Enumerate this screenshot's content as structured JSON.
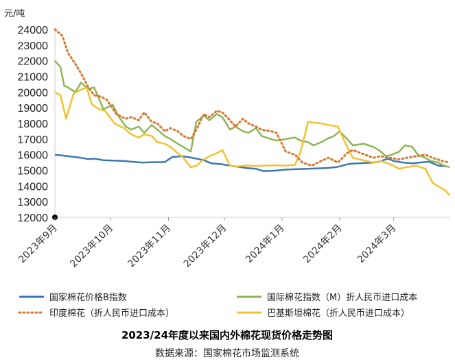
{
  "chart_data": {
    "type": "line",
    "title": "2023/24年度以来国内外棉花现货价格走势图",
    "source": "数据来源：国家棉花市场监测系统",
    "ylabel": "元/吨",
    "ylim": [
      12000,
      24000
    ],
    "yticks": [
      "12000",
      "13000",
      "14000",
      "15000",
      "16000",
      "17000",
      "18000",
      "19000",
      "20000",
      "21000",
      "22000",
      "23000",
      "24000"
    ],
    "x_range": [
      "2023-09-01",
      "2024-03-31"
    ],
    "x_ticks": [
      {
        "date": "2023-09-01",
        "label": "2023年9月"
      },
      {
        "date": "2023-10-01",
        "label": "2023年10月"
      },
      {
        "date": "2023-11-01",
        "label": "2023年11月"
      },
      {
        "date": "2023-12-01",
        "label": "2023年12月"
      },
      {
        "date": "2024-01-01",
        "label": "2024年1月"
      },
      {
        "date": "2024-02-01",
        "label": "2024年2月"
      },
      {
        "date": "2024-03-01",
        "label": "2024年3月"
      }
    ],
    "grid": false,
    "legend_position": "bottom",
    "series": [
      {
        "name": "国家棉花价格B指数",
        "color": "#3a78b5",
        "dash": "solid",
        "x": [
          "2023-09-01",
          "2023-09-05",
          "2023-09-08",
          "2023-09-12",
          "2023-09-15",
          "2023-09-19",
          "2023-09-22",
          "2023-09-27",
          "2023-10-08",
          "2023-10-12",
          "2023-10-18",
          "2023-10-24",
          "2023-10-30",
          "2023-11-03",
          "2023-11-08",
          "2023-11-13",
          "2023-11-16",
          "2023-11-20",
          "2023-11-24",
          "2023-11-29",
          "2023-12-04",
          "2023-12-08",
          "2023-12-13",
          "2023-12-18",
          "2023-12-22",
          "2023-12-28",
          "2024-01-03",
          "2024-01-09",
          "2024-01-15",
          "2024-01-19",
          "2024-01-25",
          "2024-01-30",
          "2024-02-05",
          "2024-02-07",
          "2024-02-19",
          "2024-02-22",
          "2024-02-27",
          "2024-03-01",
          "2024-03-06",
          "2024-03-11",
          "2024-03-15",
          "2024-03-20",
          "2024-03-25",
          "2024-03-29"
        ],
        "values": [
          16000,
          15950,
          15900,
          15850,
          15800,
          15720,
          15750,
          15650,
          15600,
          15550,
          15500,
          15520,
          15530,
          15850,
          15900,
          15820,
          15750,
          15650,
          15450,
          15400,
          15300,
          15230,
          15150,
          15100,
          14950,
          14980,
          15050,
          15080,
          15100,
          15120,
          15150,
          15200,
          15380,
          15420,
          15500,
          15550,
          15750,
          15600,
          15500,
          15450,
          15500,
          15550,
          15300,
          15250
        ]
      },
      {
        "name": "国际棉花指数（M）折人民币进口成本",
        "color": "#8db554",
        "dash": "solid",
        "x": [
          "2023-09-01",
          "2023-09-04",
          "2023-09-06",
          "2023-09-08",
          "2023-09-12",
          "2023-09-15",
          "2023-09-19",
          "2023-09-22",
          "2023-09-25",
          "2023-09-27",
          "2023-10-02",
          "2023-10-05",
          "2023-10-09",
          "2023-10-12",
          "2023-10-16",
          "2023-10-19",
          "2023-10-23",
          "2023-10-26",
          "2023-10-30",
          "2023-11-02",
          "2023-11-06",
          "2023-11-09",
          "2023-11-13",
          "2023-11-16",
          "2023-11-20",
          "2023-11-23",
          "2023-11-27",
          "2023-11-30",
          "2023-12-04",
          "2023-12-07",
          "2023-12-11",
          "2023-12-14",
          "2023-12-18",
          "2023-12-21",
          "2023-12-26",
          "2023-12-29",
          "2024-01-03",
          "2024-01-08",
          "2024-01-11",
          "2024-01-15",
          "2024-01-18",
          "2024-01-22",
          "2024-01-25",
          "2024-01-29",
          "2024-02-01",
          "2024-02-05",
          "2024-02-08",
          "2024-02-14",
          "2024-02-19",
          "2024-02-22",
          "2024-02-26",
          "2024-02-29",
          "2024-03-04",
          "2024-03-07",
          "2024-03-11",
          "2024-03-14",
          "2024-03-18",
          "2024-03-21",
          "2024-03-25",
          "2024-03-28",
          "2024-03-31"
        ],
        "values": [
          22000,
          21600,
          20400,
          20300,
          20000,
          20600,
          20200,
          20300,
          19500,
          18900,
          19200,
          18500,
          17800,
          17600,
          17800,
          17400,
          17900,
          17600,
          17200,
          17000,
          16700,
          16500,
          16200,
          18100,
          18500,
          18200,
          18600,
          18400,
          17600,
          17800,
          17500,
          17400,
          17700,
          17200,
          17000,
          16900,
          17000,
          17100,
          16900,
          16800,
          16600,
          16800,
          17000,
          17200,
          17500,
          17000,
          16600,
          16700,
          16500,
          16300,
          15900,
          16000,
          16200,
          16600,
          16500,
          16000,
          15800,
          15600,
          15500,
          15300,
          15200
        ]
      },
      {
        "name": "印度棉花（折人民币进口成本）",
        "color": "#d9782d",
        "dash": "dotted",
        "x": [
          "2023-09-01",
          "2023-09-05",
          "2023-09-08",
          "2023-09-12",
          "2023-09-15",
          "2023-09-19",
          "2023-09-22",
          "2023-09-26",
          "2023-09-29",
          "2023-10-04",
          "2023-10-09",
          "2023-10-12",
          "2023-10-16",
          "2023-10-19",
          "2023-10-23",
          "2023-10-26",
          "2023-10-30",
          "2023-11-02",
          "2023-11-06",
          "2023-11-09",
          "2023-11-13",
          "2023-11-16",
          "2023-11-20",
          "2023-11-23",
          "2023-11-27",
          "2023-11-30",
          "2023-12-04",
          "2023-12-07",
          "2023-12-11",
          "2023-12-14",
          "2023-12-18",
          "2023-12-21",
          "2023-12-26",
          "2023-12-29",
          "2024-01-03",
          "2024-01-08",
          "2024-01-12",
          "2024-01-17",
          "2024-01-22",
          "2024-01-26",
          "2024-01-31",
          "2024-02-05",
          "2024-02-08",
          "2024-02-19",
          "2024-02-23",
          "2024-02-28",
          "2024-03-04",
          "2024-03-08",
          "2024-03-13",
          "2024-03-18",
          "2024-03-22",
          "2024-03-27",
          "2024-03-31"
        ],
        "values": [
          24000,
          23600,
          22500,
          21800,
          21200,
          20300,
          19800,
          19700,
          19500,
          18600,
          18300,
          18400,
          18200,
          18700,
          18100,
          18000,
          17500,
          17700,
          17500,
          17200,
          17000,
          17600,
          18600,
          18400,
          18800,
          18700,
          18200,
          17800,
          18300,
          18000,
          17800,
          17600,
          17500,
          17400,
          16200,
          16000,
          15500,
          15300,
          15600,
          15800,
          15500,
          16100,
          16300,
          15800,
          15900,
          15800,
          15700,
          15800,
          15900,
          16000,
          15800,
          15600,
          15500
        ]
      },
      {
        "name": "巴基斯坦棉花（折人民币进口成本）",
        "color": "#f2c12e",
        "dash": "solid",
        "x": [
          "2023-09-01",
          "2023-09-04",
          "2023-09-07",
          "2023-09-11",
          "2023-09-14",
          "2023-09-18",
          "2023-09-21",
          "2023-09-25",
          "2023-09-28",
          "2023-10-03",
          "2023-10-08",
          "2023-10-12",
          "2023-10-16",
          "2023-10-19",
          "2023-10-23",
          "2023-10-26",
          "2023-10-30",
          "2023-11-02",
          "2023-11-06",
          "2023-11-09",
          "2023-11-13",
          "2023-11-16",
          "2023-11-20",
          "2023-11-23",
          "2023-11-27",
          "2023-11-30",
          "2023-12-04",
          "2023-12-08",
          "2023-12-13",
          "2023-12-18",
          "2023-12-22",
          "2023-12-28",
          "2024-01-03",
          "2024-01-08",
          "2024-01-11",
          "2024-01-15",
          "2024-01-18",
          "2024-01-22",
          "2024-01-26",
          "2024-01-31",
          "2024-02-05",
          "2024-02-08",
          "2024-02-19",
          "2024-02-23",
          "2024-02-28",
          "2024-03-04",
          "2024-03-08",
          "2024-03-13",
          "2024-03-18",
          "2024-03-22",
          "2024-03-26",
          "2024-03-29",
          "2024-03-31"
        ],
        "values": [
          20000,
          19800,
          18300,
          19900,
          20100,
          20300,
          19200,
          18900,
          18800,
          18000,
          17700,
          17300,
          17100,
          17300,
          17200,
          16800,
          16700,
          16500,
          16100,
          15800,
          15200,
          15300,
          15700,
          15900,
          16100,
          16300,
          15300,
          15250,
          15300,
          15280,
          15300,
          15320,
          15300,
          15350,
          16200,
          18100,
          18050,
          18000,
          17900,
          17800,
          16500,
          15800,
          15500,
          15600,
          15400,
          15100,
          15200,
          15300,
          15100,
          14200,
          13900,
          13700,
          13400
        ]
      }
    ]
  }
}
